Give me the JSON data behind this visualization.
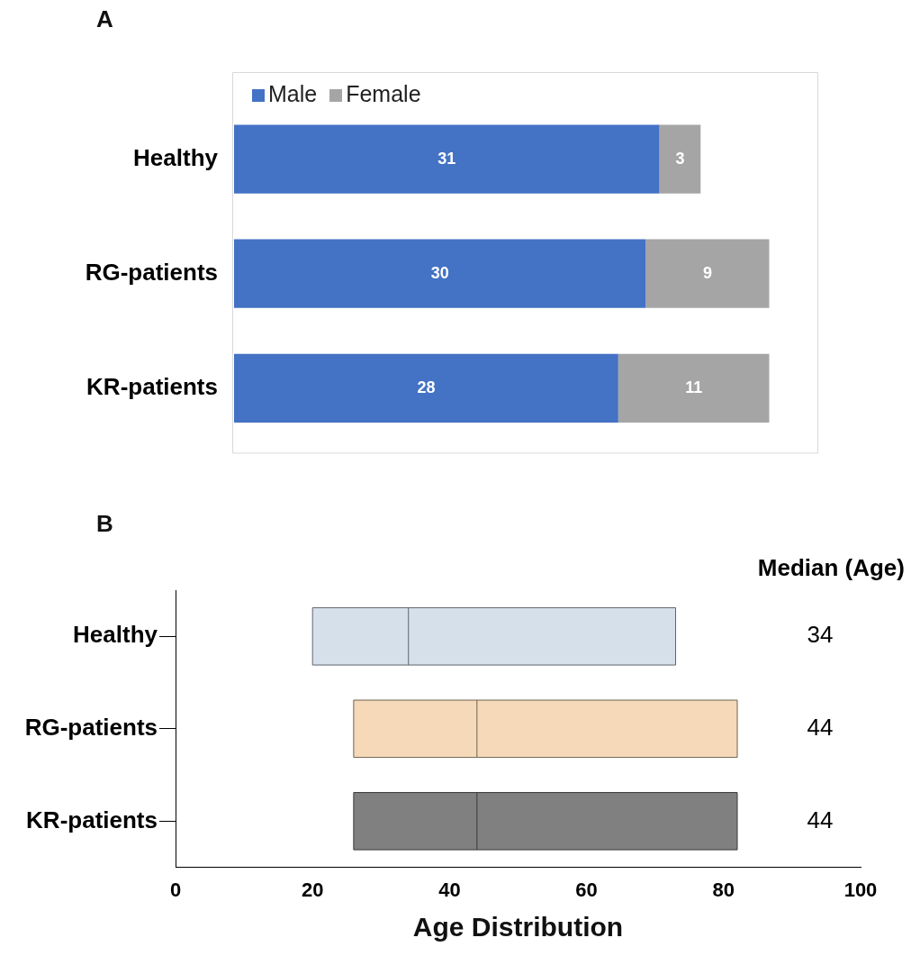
{
  "chart_data": [
    {
      "type": "bar",
      "title": "A",
      "orientation": "horizontal",
      "stacked": true,
      "data_labels": true,
      "legend": "top left",
      "grid": false,
      "categories": [
        "Healthy",
        "RG-patients",
        "KR-patients"
      ],
      "series": [
        {
          "name": "Male",
          "color": "#4472c4",
          "values": [
            31,
            30,
            28
          ]
        },
        {
          "name": "Female",
          "color": "#a5a5a5",
          "values": [
            3,
            9,
            11
          ]
        }
      ]
    },
    {
      "type": "box",
      "title": "B",
      "orientation": "horizontal",
      "grid": false,
      "categories": [
        "Healthy",
        "RG-patients",
        "KR-patients"
      ],
      "boxes": [
        {
          "low": 20,
          "q1": 20,
          "median": 34,
          "q3": 73,
          "high": 73
        },
        {
          "low": 26,
          "q1": 26,
          "median": 44,
          "q3": 82,
          "high": 82
        },
        {
          "low": 26,
          "q1": 26,
          "median": 44,
          "q3": 82,
          "high": 82
        }
      ],
      "colors": [
        "#d5e0eb",
        "#f5d9b8",
        "#808080"
      ],
      "xlim": [
        0,
        100
      ],
      "xticks": [
        0,
        20,
        40,
        60,
        80,
        100
      ],
      "xlabel": "Age Distribution",
      "annotations": [
        "Median (Age)",
        "34",
        "44",
        "44"
      ]
    }
  ]
}
